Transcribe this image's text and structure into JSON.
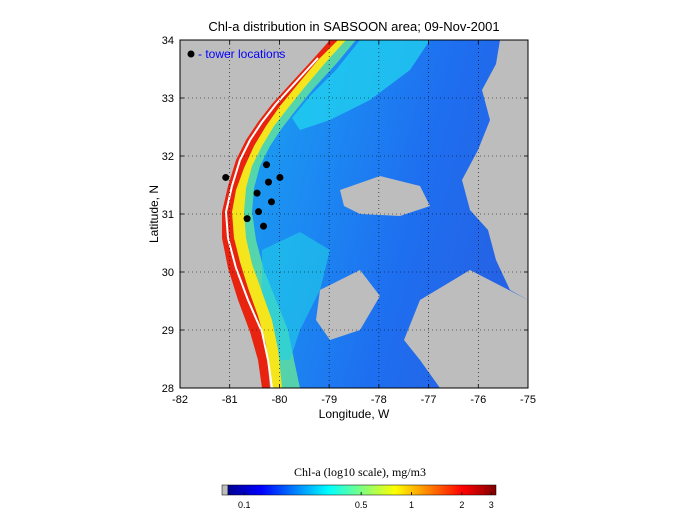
{
  "chart_data": {
    "type": "heatmap",
    "title": "Chl-a distribution in SABSOON area; 09-Nov-2001",
    "xlabel": "Longitude, W",
    "ylabel": "Latitude, N",
    "xlim": [
      -82,
      -75
    ],
    "ylim": [
      28,
      34
    ],
    "grid": true,
    "x_ticks": [
      "-82",
      "-81",
      "-80",
      "-79",
      "-78",
      "-77",
      "-76",
      "-75"
    ],
    "y_ticks": [
      "28",
      "29",
      "30",
      "31",
      "32",
      "33",
      "34"
    ],
    "legend": {
      "label": "- tower locations",
      "placement": "top-left",
      "color": "#0000ff"
    },
    "series": [
      {
        "name": "tower locations",
        "points": [
          {
            "x": -81.08,
            "y": 31.63
          },
          {
            "x": -80.65,
            "y": 30.92
          },
          {
            "x": -80.45,
            "y": 31.36
          },
          {
            "x": -80.42,
            "y": 31.04
          },
          {
            "x": -80.32,
            "y": 30.79
          },
          {
            "x": -80.26,
            "y": 31.85
          },
          {
            "x": -80.22,
            "y": 31.55
          },
          {
            "x": -80.16,
            "y": 31.21
          },
          {
            "x": -79.99,
            "y": 31.63
          }
        ]
      }
    ],
    "colorbar": {
      "label": "Chl-a (log10 scale), mg/m3",
      "tick_labels": [
        "0.1",
        "0.5",
        "1",
        "2",
        "3"
      ],
      "tick_values": [
        0.1,
        0.5,
        1,
        2,
        3
      ],
      "colormap": "jet"
    },
    "colors": {
      "land": "#bdbdbd",
      "water": "#ffffff"
    }
  }
}
